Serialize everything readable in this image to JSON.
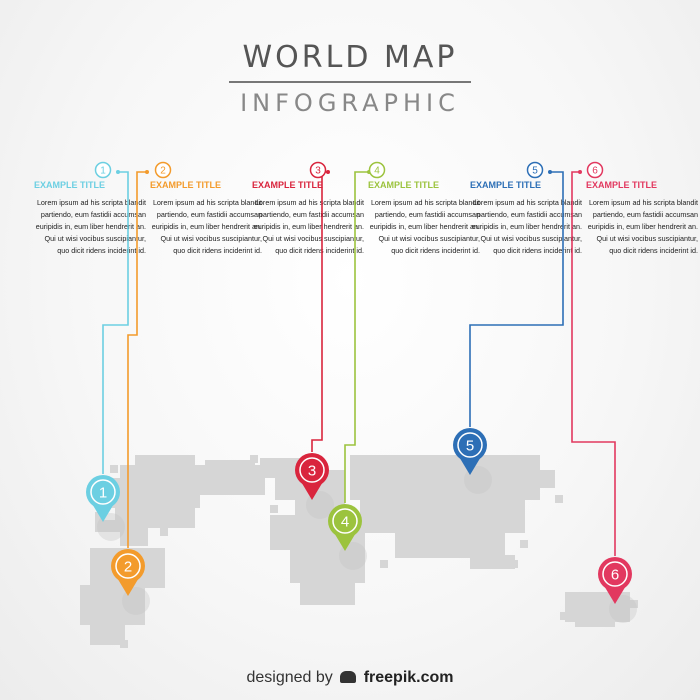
{
  "title": {
    "line1": "WORLD MAP",
    "line2": "INFOGRAPHIC"
  },
  "steps": [
    {
      "num": "1",
      "title": "EXAMPLE TITLE",
      "color": "#6ccfe2",
      "text": "Lorem ipsum ad his scripta blandit partiendo, eum fastidii accumsan euripidis in, eum liber hendrerit an. Qui ut wisi vocibus suscipiantur, quo dicit ridens inciderint id."
    },
    {
      "num": "2",
      "title": "EXAMPLE TITLE",
      "color": "#f39b2c",
      "text": "Lorem ipsum ad his scripta blandit partiendo, eum fastidii accumsan euripidis in, eum liber hendrerit an. Qui ut wisi vocibus suscipiantur, quo dicit ridens inciderint id."
    },
    {
      "num": "3",
      "title": "EXAMPLE TITLE",
      "color": "#d9253d",
      "text": "Lorem ipsum ad his scripta blandit partiendo, eum fastidii accumsan euripidis in, eum liber hendrerit an. Qui ut wisi vocibus suscipiantur, quo dicit ridens inciderint id."
    },
    {
      "num": "4",
      "title": "EXAMPLE TITLE",
      "color": "#9cc33e",
      "text": "Lorem ipsum ad his scripta blandit partiendo, eum fastidii accumsan euripidis in, eum liber hendrerit an. Qui ut wisi vocibus suscipiantur, quo dicit ridens inciderint id."
    },
    {
      "num": "5",
      "title": "EXAMPLE TITLE",
      "color": "#2d6fb6",
      "text": "Lorem ipsum ad his scripta blandit partiendo, eum fastidii accumsan euripidis in, eum liber hendrerit an. Qui ut wisi vocibus suscipiantur, quo dicit ridens inciderint id."
    },
    {
      "num": "6",
      "title": "EXAMPLE TITLE",
      "color": "#e2385f",
      "text": "Lorem ipsum ad his scripta blandit partiendo, eum fastidii accumsan euripidis in, eum liber hendrerit an. Qui ut wisi vocibus suscipiantur, quo dicit ridens inciderint id."
    }
  ],
  "footer": {
    "prefix": "designed by",
    "brand": "freepik.com"
  },
  "map_color": "#d6d6d6"
}
